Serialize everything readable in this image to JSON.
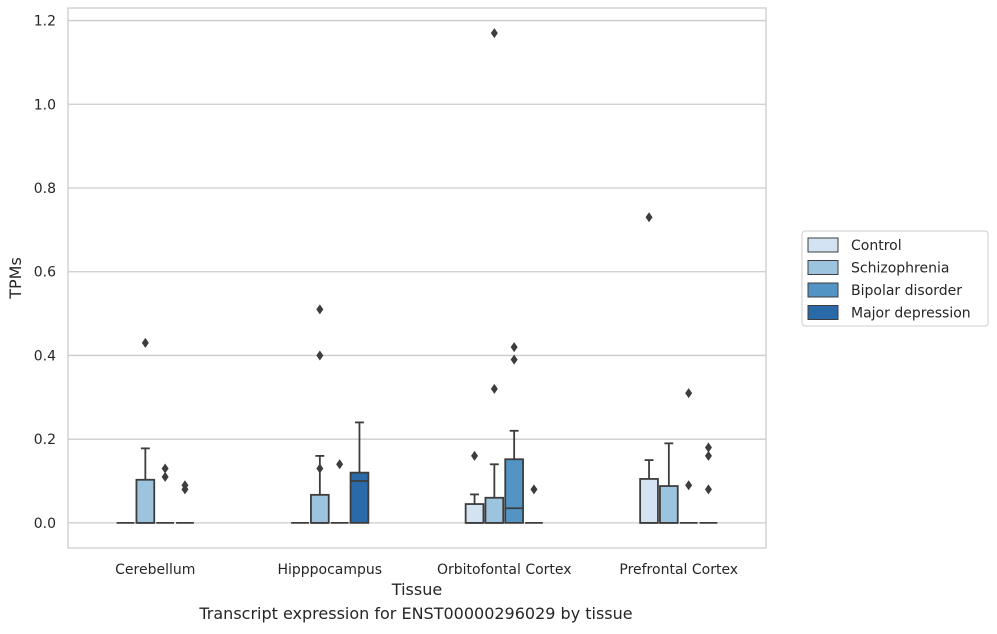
{
  "chart_data": {
    "type": "box",
    "xlabel": "Tissue",
    "ylabel": "TPMs",
    "ylim": [
      -0.06,
      1.23
    ],
    "yticks": [
      0.0,
      0.2,
      0.4,
      0.6,
      0.8,
      1.0,
      1.2
    ],
    "ytick_labels": [
      "0.0",
      "0.2",
      "0.4",
      "0.6",
      "0.8",
      "1.0",
      "1.2"
    ],
    "grid": "horizontal",
    "legend_position": "right",
    "categories": [
      "Cerebellum",
      "Hipppocampus",
      "Orbitofontal Cortex",
      "Prefrontal Cortex"
    ],
    "series": [
      {
        "name": "Control",
        "color": "#d3e3f1",
        "boxes": [
          {
            "q1": 0,
            "median": 0,
            "q3": 0,
            "whisker_low": 0,
            "whisker_high": 0,
            "outliers": []
          },
          {
            "q1": 0,
            "median": 0,
            "q3": 0,
            "whisker_low": 0,
            "whisker_high": 0,
            "outliers": []
          },
          {
            "q1": 0,
            "median": 0,
            "q3": 0.045,
            "whisker_low": 0,
            "whisker_high": 0.068,
            "outliers": [
              0.16
            ]
          },
          {
            "q1": 0,
            "median": 0,
            "q3": 0.105,
            "whisker_low": 0,
            "whisker_high": 0.15,
            "outliers": [
              0.73
            ]
          }
        ]
      },
      {
        "name": "Schizophrenia",
        "color": "#9dc4df",
        "boxes": [
          {
            "q1": 0,
            "median": 0,
            "q3": 0.103,
            "whisker_low": 0,
            "whisker_high": 0.178,
            "outliers": [
              0.43
            ]
          },
          {
            "q1": 0,
            "median": 0,
            "q3": 0.067,
            "whisker_low": 0,
            "whisker_high": 0.16,
            "outliers": [
              0.13,
              0.4,
              0.51
            ]
          },
          {
            "q1": 0,
            "median": 0,
            "q3": 0.06,
            "whisker_low": 0,
            "whisker_high": 0.14,
            "outliers": [
              0.32,
              1.17
            ]
          },
          {
            "q1": 0,
            "median": 0,
            "q3": 0.088,
            "whisker_low": 0,
            "whisker_high": 0.19,
            "outliers": []
          }
        ]
      },
      {
        "name": "Bipolar disorder",
        "color": "#5295c4",
        "boxes": [
          {
            "q1": 0,
            "median": 0,
            "q3": 0,
            "whisker_low": 0,
            "whisker_high": 0,
            "outliers": [
              0.11,
              0.13
            ]
          },
          {
            "q1": 0,
            "median": 0,
            "q3": 0,
            "whisker_low": 0,
            "whisker_high": 0,
            "outliers": [
              0.14
            ]
          },
          {
            "q1": 0,
            "median": 0.035,
            "q3": 0.152,
            "whisker_low": 0,
            "whisker_high": 0.22,
            "outliers": [
              0.39,
              0.42
            ]
          },
          {
            "q1": 0,
            "median": 0,
            "q3": 0,
            "whisker_low": 0,
            "whisker_high": 0,
            "outliers": [
              0.09,
              0.31
            ]
          }
        ]
      },
      {
        "name": "Major depression",
        "color": "#2b6aa8",
        "boxes": [
          {
            "q1": 0,
            "median": 0,
            "q3": 0,
            "whisker_low": 0,
            "whisker_high": 0,
            "outliers": [
              0.08,
              0.09
            ]
          },
          {
            "q1": 0,
            "median": 0.1,
            "q3": 0.12,
            "whisker_low": 0,
            "whisker_high": 0.24,
            "outliers": []
          },
          {
            "q1": 0,
            "median": 0,
            "q3": 0,
            "whisker_low": 0,
            "whisker_high": 0,
            "outliers": [
              0.08
            ]
          },
          {
            "q1": 0,
            "median": 0,
            "q3": 0,
            "whisker_low": 0,
            "whisker_high": 0,
            "outliers": [
              0.08,
              0.16,
              0.18
            ]
          }
        ]
      }
    ]
  },
  "caption": "Transcript expression for ENST00000296029 by tissue"
}
